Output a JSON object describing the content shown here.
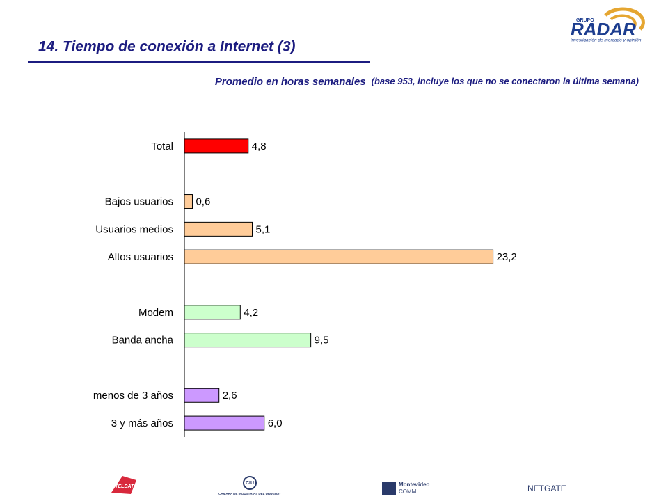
{
  "header": {
    "title": "14. Tiempo de conexión a Internet (3)",
    "subtitle": "Promedio en horas semanales",
    "note": "(base 953, incluye los que no se conectaron la última semana)"
  },
  "brand": {
    "group": "GRUPO",
    "name": "RADAR",
    "tagline": "investigación de mercado y opinión"
  },
  "chart_data": {
    "type": "bar",
    "orientation": "horizontal",
    "categories": [
      "Total",
      null,
      "Bajos usuarios",
      "Usuarios medios",
      "Altos usuarios",
      null,
      "Modem",
      "Banda ancha",
      null,
      "menos de 3 años",
      "3 y más años"
    ],
    "values": [
      4.8,
      null,
      0.6,
      5.1,
      23.2,
      null,
      4.2,
      9.5,
      null,
      2.6,
      6.0
    ],
    "value_labels": [
      "4,8",
      null,
      "0,6",
      "5,1",
      "23,2",
      null,
      "4,2",
      "9,5",
      null,
      "2,6",
      "6,0"
    ],
    "colors": [
      "#ff0000",
      null,
      "#ffcc99",
      "#ffcc99",
      "#ffcc99",
      null,
      "#ccffcc",
      "#ccffcc",
      null,
      "#cc99ff",
      "#cc99ff"
    ],
    "xlim": [
      0,
      25
    ]
  },
  "footer": {
    "logos": [
      "ANTELDATA",
      "CIU",
      "CAMARA DE INDUSTRIAS DEL URUGUAY",
      "Montevideo",
      "COMM",
      "NETGATE"
    ]
  }
}
